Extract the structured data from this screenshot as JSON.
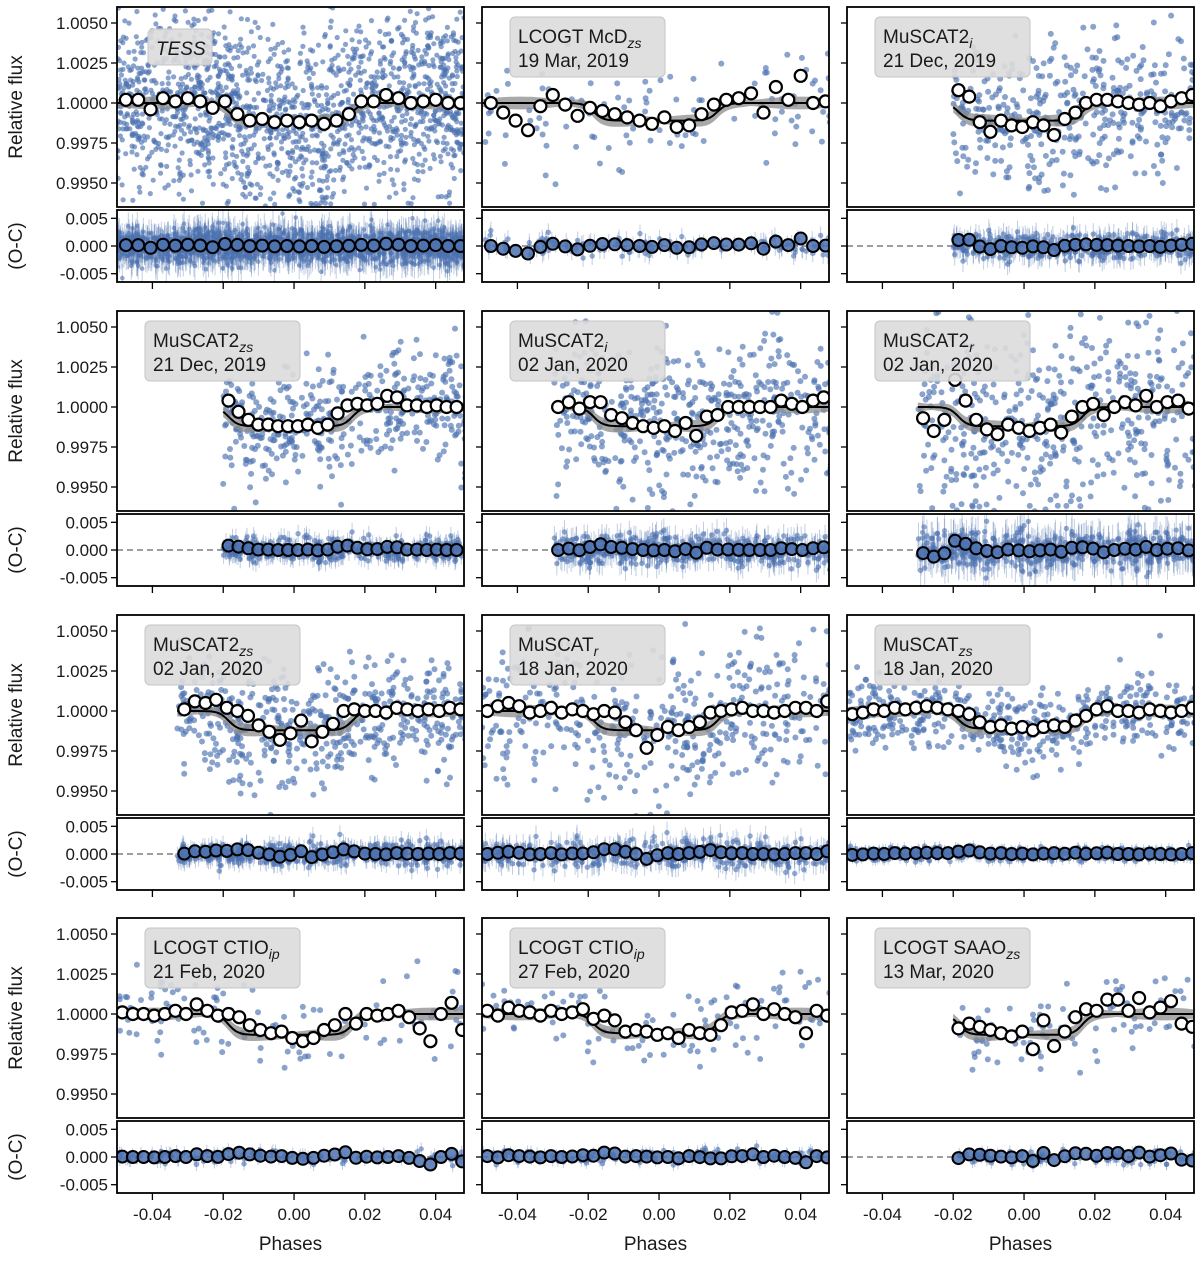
{
  "figure": {
    "xlabel": "Phases",
    "flux_label": "Relative flux",
    "oc_label": "(O-C)",
    "colors": {
      "points": "#4c72b0",
      "model": "#000000",
      "band": "#8c8c8c",
      "binned_edge": "#000000",
      "label_box": "#dcdcdc",
      "zero_line": "#7f7f7f"
    }
  },
  "chart_data": {
    "type": "scatter",
    "title": "",
    "xlim": [
      -0.05,
      0.048
    ],
    "ylim_flux": [
      0.9935,
      1.006
    ],
    "ylim_oc": [
      -0.0065,
      0.0065
    ],
    "xticks": [
      -0.04,
      -0.02,
      0.0,
      0.02,
      0.04
    ],
    "xtick_labels": [
      "-0.04",
      "-0.02",
      "0.00",
      "0.02",
      "0.04"
    ],
    "flux_ticks": [
      0.995,
      0.9975,
      1.0,
      1.0025,
      1.005
    ],
    "flux_tick_labels": [
      "0.9950",
      "0.9975",
      "1.0000",
      "1.0025",
      "1.0050"
    ],
    "oc_ticks": [
      -0.005,
      0.0,
      0.005
    ],
    "oc_tick_labels": [
      "-0.005",
      "0.000",
      "0.005"
    ],
    "panels": [
      {
        "id": "tess",
        "inst": "TESS",
        "sub": "",
        "date": "",
        "italic": true,
        "start": -0.05,
        "scatter": 0.0028,
        "density": 1700,
        "binstep": 0.0035,
        "depth": 0.0011,
        "binned_phase": [
          -0.0475,
          -0.044,
          -0.0405,
          -0.037,
          -0.0335,
          -0.03,
          -0.0265,
          -0.023,
          -0.0195,
          -0.016,
          -0.0125,
          -0.009,
          -0.0055,
          -0.002,
          0.0015,
          0.005,
          0.0085,
          0.012,
          0.0155,
          0.019,
          0.0225,
          0.026,
          0.0295,
          0.033,
          0.0365,
          0.04,
          0.0435,
          0.047
        ],
        "binned_flux": [
          1.0002,
          1.0002,
          0.9996,
          1.0003,
          1.0001,
          1.0003,
          1.0001,
          0.9997,
          1.0001,
          0.9993,
          0.9989,
          0.999,
          0.9988,
          0.9989,
          0.9988,
          0.9989,
          0.9987,
          0.9989,
          0.9993,
          1.0001,
          1.0001,
          1.0005,
          1.0003,
          1.0,
          1.0001,
          1.0002,
          1.0,
          1.0
        ]
      },
      {
        "id": "mcd",
        "inst": "LCOGT McD",
        "sub": "zs",
        "date": "19 Mar, 2019",
        "italic": false,
        "start": -0.05,
        "scatter": 0.0018,
        "density": 120,
        "binstep": 0.0035,
        "depth": 0.0011,
        "binned_phase": [
          -0.0475,
          -0.044,
          -0.0405,
          -0.037,
          -0.0335,
          -0.03,
          -0.0265,
          -0.023,
          -0.0195,
          -0.016,
          -0.0125,
          -0.009,
          -0.0055,
          -0.002,
          0.0015,
          0.005,
          0.0085,
          0.012,
          0.0155,
          0.019,
          0.0225,
          0.026,
          0.0295,
          0.033,
          0.0365,
          0.04,
          0.0435,
          0.047
        ],
        "binned_flux": [
          1.0,
          0.9994,
          0.9989,
          0.9983,
          0.9998,
          1.0005,
          0.9999,
          0.9992,
          0.9997,
          0.9995,
          0.9993,
          0.9991,
          0.9989,
          0.9987,
          0.9991,
          0.9985,
          0.9986,
          0.9993,
          0.9999,
          1.0002,
          1.0003,
          1.0006,
          0.9994,
          1.001,
          1.0002,
          1.0017,
          1.0,
          1.0001
        ]
      },
      {
        "id": "m2i_dec",
        "inst": "MuSCAT2",
        "sub": "i",
        "date": "21 Dec, 2019",
        "italic": false,
        "start": -0.02,
        "scatter": 0.0022,
        "density": 420,
        "binstep": 0.003,
        "depth": 0.0011,
        "binned_phase": [
          -0.0185,
          -0.0155,
          -0.0125,
          -0.0095,
          -0.0065,
          -0.0035,
          -0.0005,
          0.0025,
          0.0055,
          0.0085,
          0.0115,
          0.0145,
          0.0175,
          0.0205,
          0.0235,
          0.0265,
          0.0295,
          0.0325,
          0.0355,
          0.0385,
          0.0415,
          0.0445,
          0.0475
        ],
        "binned_flux": [
          1.0008,
          1.0004,
          0.9988,
          0.9982,
          0.9989,
          0.9986,
          0.9985,
          0.9988,
          0.9986,
          0.998,
          0.999,
          0.9994,
          1.0,
          1.0002,
          1.0002,
          1.0001,
          1.0,
          0.9999,
          1.0,
          0.9998,
          1.0001,
          1.0003,
          1.0005
        ]
      },
      {
        "id": "m2zs_dec",
        "inst": "MuSCAT2",
        "sub": "zs",
        "date": "21 Dec, 2019",
        "italic": false,
        "start": -0.02,
        "scatter": 0.0018,
        "density": 430,
        "binstep": 0.0028,
        "depth": 0.0012,
        "binned_phase": [
          -0.0185,
          -0.0157,
          -0.0129,
          -0.0101,
          -0.0073,
          -0.0045,
          -0.0017,
          0.0011,
          0.0039,
          0.0067,
          0.0095,
          0.0123,
          0.0151,
          0.0179,
          0.0207,
          0.0235,
          0.0263,
          0.0291,
          0.0319,
          0.0347,
          0.0375,
          0.0403,
          0.0431,
          0.0459
        ],
        "binned_flux": [
          1.0004,
          0.9997,
          0.9992,
          0.9989,
          0.9989,
          0.9988,
          0.9988,
          0.9988,
          0.9989,
          0.9987,
          0.9989,
          0.9996,
          1.0001,
          1.0002,
          1.0001,
          1.0002,
          1.0007,
          1.0006,
          1.0001,
          1.0001,
          1.0,
          1.0001,
          1.0,
          1.0
        ]
      },
      {
        "id": "m2i_jan",
        "inst": "MuSCAT2",
        "sub": "i",
        "date": "02 Jan, 2020",
        "italic": false,
        "start": -0.03,
        "scatter": 0.0024,
        "density": 520,
        "binstep": 0.003,
        "depth": 0.0012,
        "binned_phase": [
          -0.0285,
          -0.0255,
          -0.0225,
          -0.0195,
          -0.0165,
          -0.0135,
          -0.0105,
          -0.0075,
          -0.0045,
          -0.0015,
          0.0015,
          0.0045,
          0.0075,
          0.0105,
          0.0135,
          0.0165,
          0.0195,
          0.0225,
          0.0255,
          0.0285,
          0.0315,
          0.0345,
          0.0375,
          0.0405,
          0.0435,
          0.0465
        ],
        "binned_flux": [
          1.0,
          1.0003,
          0.9999,
          1.0003,
          1.0003,
          0.9995,
          0.9993,
          0.999,
          0.9988,
          0.9987,
          0.9988,
          0.9985,
          0.999,
          0.9982,
          0.9994,
          0.9995,
          1.0,
          1.0,
          1.0,
          1.0,
          1.0,
          1.0004,
          1.0002,
          1.0,
          1.0004,
          1.0006
        ]
      },
      {
        "id": "m2r_jan",
        "inst": "MuSCAT2",
        "sub": "r",
        "date": "02 Jan, 2020",
        "italic": false,
        "start": -0.03,
        "scatter": 0.0033,
        "density": 520,
        "binstep": 0.003,
        "depth": 0.0012,
        "binned_phase": [
          -0.0285,
          -0.0255,
          -0.0225,
          -0.0195,
          -0.0165,
          -0.0135,
          -0.0105,
          -0.0075,
          -0.0045,
          -0.0015,
          0.0015,
          0.0045,
          0.0075,
          0.0105,
          0.0135,
          0.0165,
          0.0195,
          0.0225,
          0.0255,
          0.0285,
          0.0315,
          0.0345,
          0.0375,
          0.0405,
          0.0435,
          0.0465
        ],
        "binned_flux": [
          0.9993,
          0.9985,
          0.9992,
          1.0017,
          1.0004,
          0.9992,
          0.9986,
          0.9983,
          0.9989,
          0.9987,
          0.9985,
          0.9987,
          0.9989,
          0.9984,
          0.9994,
          1.0,
          1.0002,
          0.9995,
          1.0,
          1.0003,
          1.0001,
          1.0007,
          1.0,
          1.0003,
          1.0004,
          0.9999
        ]
      },
      {
        "id": "m2zs_jan",
        "inst": "MuSCAT2",
        "sub": "zs",
        "date": "02 Jan, 2020",
        "italic": false,
        "start": -0.033,
        "scatter": 0.0018,
        "density": 520,
        "binstep": 0.003,
        "depth": 0.0012,
        "binned_phase": [
          -0.031,
          -0.028,
          -0.025,
          -0.022,
          -0.019,
          -0.016,
          -0.013,
          -0.01,
          -0.007,
          -0.004,
          -0.001,
          0.002,
          0.005,
          0.008,
          0.011,
          0.014,
          0.017,
          0.02,
          0.023,
          0.026,
          0.029,
          0.032,
          0.035,
          0.038,
          0.041,
          0.044,
          0.047
        ],
        "binned_flux": [
          1.0001,
          1.0006,
          1.0005,
          1.0007,
          1.0002,
          1.0,
          0.9997,
          0.9991,
          0.9987,
          0.9982,
          0.9986,
          0.9994,
          0.9981,
          0.9987,
          0.9992,
          1.0,
          1.0001,
          1.0,
          1.0,
          0.9999,
          1.0002,
          1.0001,
          1.0,
          1.0001,
          1.0,
          1.0002,
          1.0001
        ]
      },
      {
        "id": "mr_jan",
        "inst": "MuSCAT",
        "sub": "r",
        "date": "18 Jan, 2020",
        "italic": false,
        "start": -0.05,
        "scatter": 0.0022,
        "density": 440,
        "binstep": 0.003,
        "depth": 0.0012,
        "binned_phase": [
          -0.0485,
          -0.0455,
          -0.0425,
          -0.0395,
          -0.0365,
          -0.0335,
          -0.0305,
          -0.0275,
          -0.0245,
          -0.0215,
          -0.0185,
          -0.0155,
          -0.0125,
          -0.0095,
          -0.0065,
          -0.0035,
          -0.0005,
          0.0025,
          0.0055,
          0.0085,
          0.0115,
          0.0145,
          0.0175,
          0.0205,
          0.0235,
          0.0265,
          0.0295,
          0.0325,
          0.0355,
          0.0385,
          0.0415,
          0.0445,
          0.0475
        ],
        "binned_flux": [
          1.0,
          1.0003,
          1.0005,
          1.0003,
          0.9999,
          1.0,
          1.0002,
          0.9999,
          1.0001,
          1.0,
          0.9998,
          1.0,
          0.9999,
          0.9993,
          0.9988,
          0.9977,
          0.9985,
          0.999,
          0.9988,
          0.999,
          0.9993,
          0.9999,
          1.0,
          1.0001,
          1.0002,
          1.0,
          1.0,
          0.9999,
          1.0,
          1.0002,
          1.0002,
          1.0,
          1.0006
        ]
      },
      {
        "id": "mzs_jan",
        "inst": "MuSCAT",
        "sub": "zs",
        "date": "18 Jan, 2020",
        "italic": false,
        "start": -0.05,
        "scatter": 0.0011,
        "density": 500,
        "binstep": 0.003,
        "depth": 0.0011,
        "binned_phase": [
          -0.0485,
          -0.0455,
          -0.0425,
          -0.0395,
          -0.0365,
          -0.0335,
          -0.0305,
          -0.0275,
          -0.0245,
          -0.0215,
          -0.0185,
          -0.0155,
          -0.0125,
          -0.0095,
          -0.0065,
          -0.0035,
          -0.0005,
          0.0025,
          0.0055,
          0.0085,
          0.0115,
          0.0145,
          0.0175,
          0.0205,
          0.0235,
          0.0265,
          0.0295,
          0.0325,
          0.0355,
          0.0385,
          0.0415,
          0.0445,
          0.0475
        ],
        "binned_flux": [
          0.9998,
          0.9999,
          1.0001,
          1.0,
          1.0002,
          1.0001,
          1.0002,
          1.0003,
          1.0002,
          1.0001,
          1.0,
          0.9998,
          0.9993,
          0.999,
          0.9991,
          0.9989,
          0.999,
          0.9988,
          0.999,
          0.9991,
          0.999,
          0.9994,
          0.9997,
          1.0001,
          1.0003,
          1.0,
          1.0,
          0.9999,
          1.0001,
          1.0,
          0.9999,
          1.0,
          1.0002
        ]
      },
      {
        "id": "ctio_feb21",
        "inst": "LCOGT CTIO",
        "sub": "ip",
        "date": "21 Feb, 2020",
        "italic": false,
        "start": -0.05,
        "scatter": 0.0013,
        "density": 110,
        "binstep": 0.003,
        "depth": 0.0013,
        "binned_phase": [
          -0.0485,
          -0.0455,
          -0.0425,
          -0.0395,
          -0.0365,
          -0.0335,
          -0.0305,
          -0.0275,
          -0.0245,
          -0.0215,
          -0.0185,
          -0.0155,
          -0.0125,
          -0.0095,
          -0.0065,
          -0.0035,
          -0.0005,
          0.0025,
          0.0055,
          0.0085,
          0.0115,
          0.0145,
          0.0175,
          0.0205,
          0.0235,
          0.0265,
          0.0295,
          0.0325,
          0.0355,
          0.0385,
          0.0415,
          0.0445,
          0.0475
        ],
        "binned_flux": [
          1.0001,
          1.0,
          1.0,
          0.9999,
          1.0,
          1.0002,
          1.0,
          1.0006,
          1.0002,
          0.9999,
          1.0,
          0.9998,
          0.9993,
          0.999,
          0.9988,
          0.9989,
          0.9985,
          0.9983,
          0.9985,
          0.999,
          0.9993,
          1.0,
          0.9994,
          1.0,
          0.9999,
          1.0,
          1.0002,
          0.9998,
          0.9991,
          0.9983,
          1.0,
          1.0007,
          0.999
        ]
      },
      {
        "id": "ctio_feb27",
        "inst": "LCOGT CTIO",
        "sub": "ip",
        "date": "27 Feb, 2020",
        "italic": false,
        "start": -0.05,
        "scatter": 0.0012,
        "density": 120,
        "binstep": 0.003,
        "depth": 0.0012,
        "binned_phase": [
          -0.0485,
          -0.0455,
          -0.0425,
          -0.0395,
          -0.0365,
          -0.0335,
          -0.0305,
          -0.0275,
          -0.0245,
          -0.0215,
          -0.0185,
          -0.0155,
          -0.0125,
          -0.0095,
          -0.0065,
          -0.0035,
          -0.0005,
          0.0025,
          0.0055,
          0.0085,
          0.0115,
          0.0145,
          0.0175,
          0.0205,
          0.0235,
          0.0265,
          0.0295,
          0.0325,
          0.0355,
          0.0385,
          0.0415,
          0.0445,
          0.0475
        ],
        "binned_flux": [
          1.0002,
          0.9999,
          1.0004,
          1.0002,
          1.0001,
          0.9999,
          1.0002,
          1.0,
          1.0001,
          1.0003,
          0.9997,
          0.9999,
          0.9996,
          0.9989,
          0.999,
          0.9989,
          0.9987,
          0.9988,
          0.9985,
          0.999,
          0.9988,
          0.9987,
          0.9993,
          1.0001,
          1.0002,
          1.0006,
          1.0,
          1.0003,
          1.0,
          0.9998,
          0.9988,
          1.0002,
          0.9999
        ]
      },
      {
        "id": "saao_mar13",
        "inst": "LCOGT SAAO",
        "sub": "zs",
        "date": "13 Mar, 2020",
        "italic": false,
        "start": -0.02,
        "scatter": 0.0012,
        "density": 95,
        "binstep": 0.003,
        "depth": 0.0013,
        "binned_phase": [
          -0.0185,
          -0.0155,
          -0.0125,
          -0.0095,
          -0.0065,
          -0.0035,
          -0.0005,
          0.0025,
          0.0055,
          0.0085,
          0.0115,
          0.0145,
          0.0175,
          0.0205,
          0.0235,
          0.0265,
          0.0295,
          0.0325,
          0.0355,
          0.0385,
          0.0415,
          0.0445,
          0.0475
        ],
        "binned_flux": [
          0.9991,
          0.9994,
          0.9992,
          0.999,
          0.9988,
          0.9986,
          0.9989,
          0.9978,
          0.9996,
          0.998,
          0.9989,
          0.9998,
          1.0003,
          1.0002,
          1.0009,
          1.0009,
          1.0002,
          1.001,
          1.0001,
          1.0004,
          1.0008,
          0.9994,
          0.9992
        ]
      }
    ]
  }
}
